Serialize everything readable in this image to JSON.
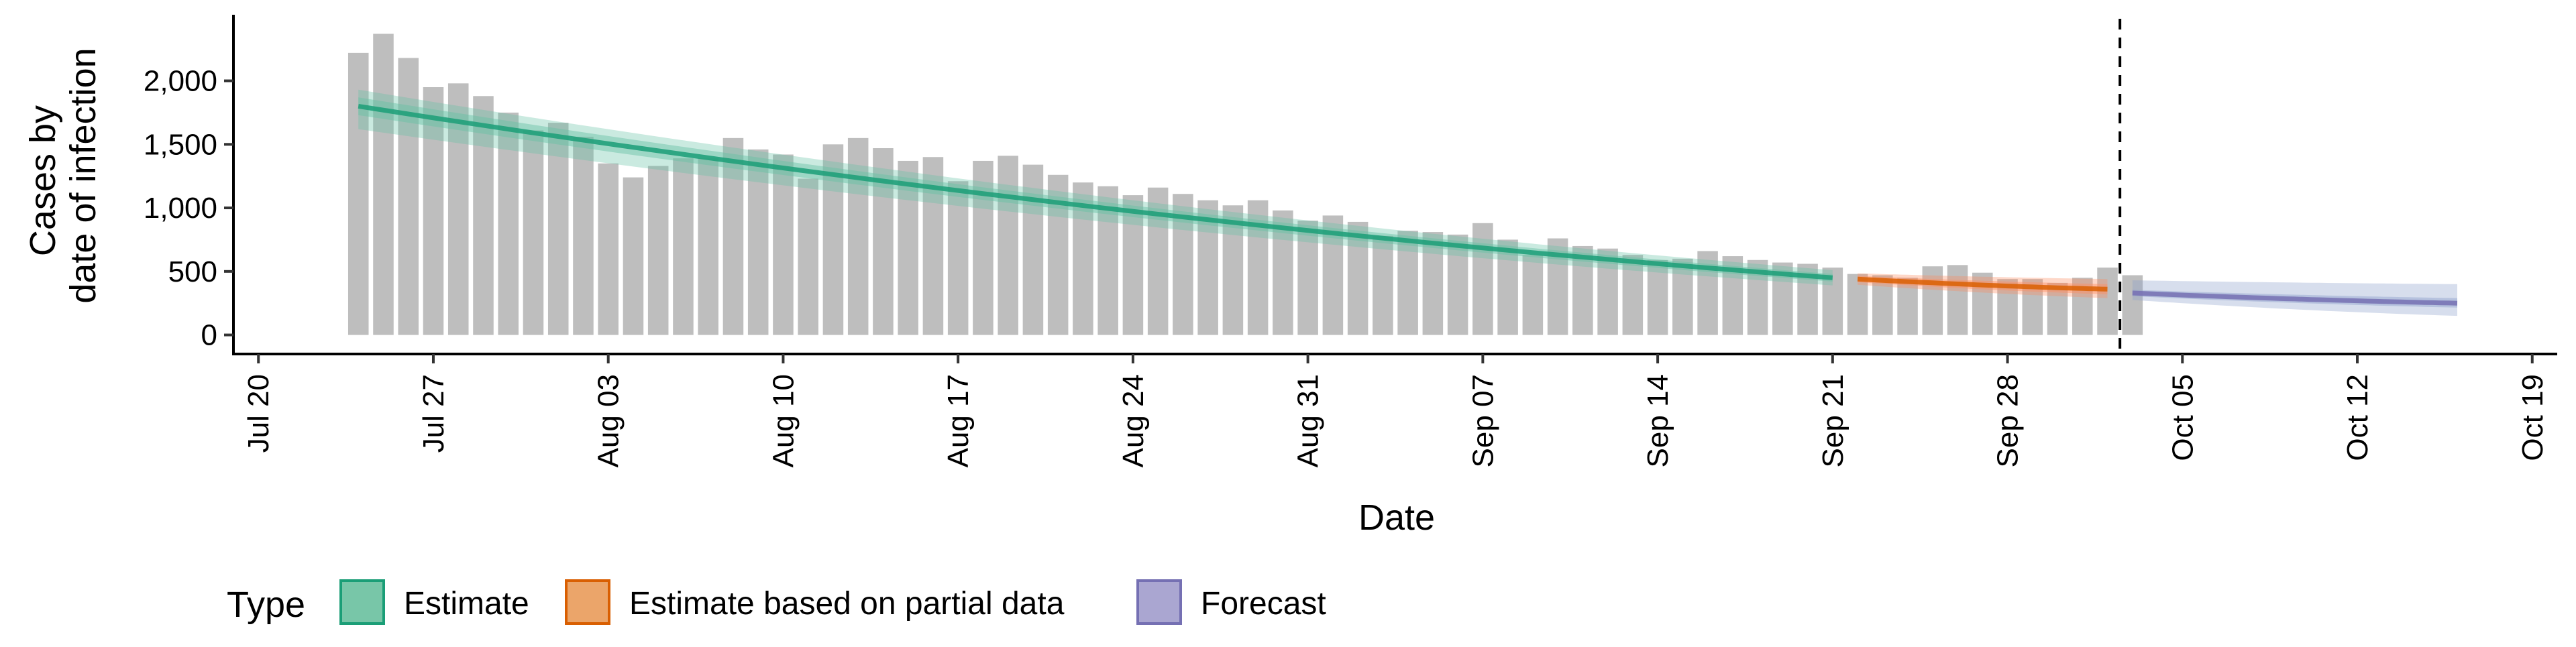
{
  "chart_data": {
    "type": "bar",
    "xlabel": "Date",
    "ylabel_lines": [
      "Cases by",
      "date of infection"
    ],
    "xlim": [
      "2020-07-19",
      "2020-10-20"
    ],
    "ylim": [
      -150,
      2520
    ],
    "y_ticks": [
      0,
      500,
      1000,
      1500,
      2000
    ],
    "y_tick_labels": [
      "0",
      "500",
      "1,000",
      "1,500",
      "2,000"
    ],
    "x_ticks": [
      "2020-07-20",
      "2020-07-27",
      "2020-08-03",
      "2020-08-10",
      "2020-08-17",
      "2020-08-24",
      "2020-08-31",
      "2020-09-07",
      "2020-09-14",
      "2020-09-21",
      "2020-09-28",
      "2020-10-05",
      "2020-10-12",
      "2020-10-19"
    ],
    "x_tick_labels": [
      "Jul 20",
      "Jul 27",
      "Aug 03",
      "Aug 10",
      "Aug 17",
      "Aug 24",
      "Aug 31",
      "Sep 07",
      "Sep 14",
      "Sep 21",
      "Sep 28",
      "Oct 05",
      "Oct 12",
      "Oct 19"
    ],
    "reference_line_date": "2020-10-02",
    "bar_color": "#bebebe",
    "bars": {
      "start_date": "2020-07-24",
      "values": [
        2220,
        2370,
        2180,
        1950,
        1980,
        1880,
        1750,
        1610,
        1670,
        1560,
        1350,
        1240,
        1330,
        1390,
        1390,
        1550,
        1460,
        1420,
        1230,
        1500,
        1550,
        1470,
        1370,
        1400,
        1210,
        1370,
        1410,
        1340,
        1260,
        1200,
        1170,
        1100,
        1160,
        1110,
        1060,
        1020,
        1060,
        980,
        900,
        940,
        890,
        780,
        820,
        810,
        790,
        880,
        750,
        630,
        760,
        700,
        680,
        630,
        590,
        600,
        660,
        620,
        590,
        570,
        560,
        530,
        480,
        470,
        450,
        540,
        550,
        490,
        440,
        440,
        410,
        450,
        530,
        470
      ]
    },
    "series": [
      {
        "name": "Estimate",
        "color": "#1b9e77",
        "fill": "#66c2a5",
        "start_date": "2020-07-24",
        "end_date": "2020-09-21",
        "median_start": 1800,
        "median_end": 450,
        "band_inner": [
          [
            1730,
            1870
          ],
          [
            420,
            480
          ]
        ],
        "band_outer": [
          [
            1620,
            1930
          ],
          [
            390,
            510
          ]
        ]
      },
      {
        "name": "Estimate based on partial data",
        "color": "#d95f02",
        "fill": "#fc8d62",
        "start_date": "2020-09-22",
        "end_date": "2020-10-02",
        "median_start": 440,
        "median_end": 360,
        "band_inner": [
          [
            415,
            465
          ],
          [
            320,
            400
          ]
        ],
        "band_outer": [
          [
            395,
            485
          ],
          [
            290,
            440
          ]
        ]
      },
      {
        "name": "Forecast",
        "color": "#7570b3",
        "fill": "#8da0cb",
        "start_date": "2020-10-03",
        "end_date": "2020-10-16",
        "median_start": 330,
        "median_end": 250,
        "band_inner": [
          [
            305,
            355
          ],
          [
            215,
            290
          ]
        ],
        "band_outer": [
          [
            275,
            430
          ],
          [
            150,
            400
          ]
        ]
      }
    ],
    "legend": {
      "title": "Type",
      "position": "bottom",
      "entries": [
        {
          "label": "Estimate",
          "fill": "#78c6a8",
          "stroke": "#1b9e77"
        },
        {
          "label": "Estimate based on partial data",
          "fill": "#eba56a",
          "stroke": "#d95f02"
        },
        {
          "label": "Forecast",
          "fill": "#aaa6d1",
          "stroke": "#7570b3"
        }
      ]
    }
  }
}
